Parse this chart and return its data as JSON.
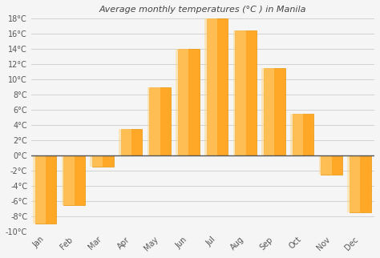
{
  "title": "Average monthly temperatures (°C ) in Manila",
  "months": [
    "Jan",
    "Feb",
    "Mar",
    "Apr",
    "May",
    "Jun",
    "Jul",
    "Aug",
    "Sep",
    "Oct",
    "Nov",
    "Dec"
  ],
  "values": [
    -9,
    -6.5,
    -1.5,
    3.5,
    9,
    14,
    18,
    16.5,
    11.5,
    5.5,
    -2.5,
    -7.5
  ],
  "bar_color": "#FFA726",
  "bar_edge_color": "#E8960A",
  "ylim": [
    -10,
    18
  ],
  "yticks": [
    -10,
    -8,
    -6,
    -4,
    -2,
    0,
    2,
    4,
    6,
    8,
    10,
    12,
    14,
    16,
    18
  ],
  "background_color": "#f5f5f5",
  "plot_bg_color": "#f5f5f5",
  "grid_color": "#cccccc",
  "title_fontsize": 8,
  "axis_fontsize": 7
}
